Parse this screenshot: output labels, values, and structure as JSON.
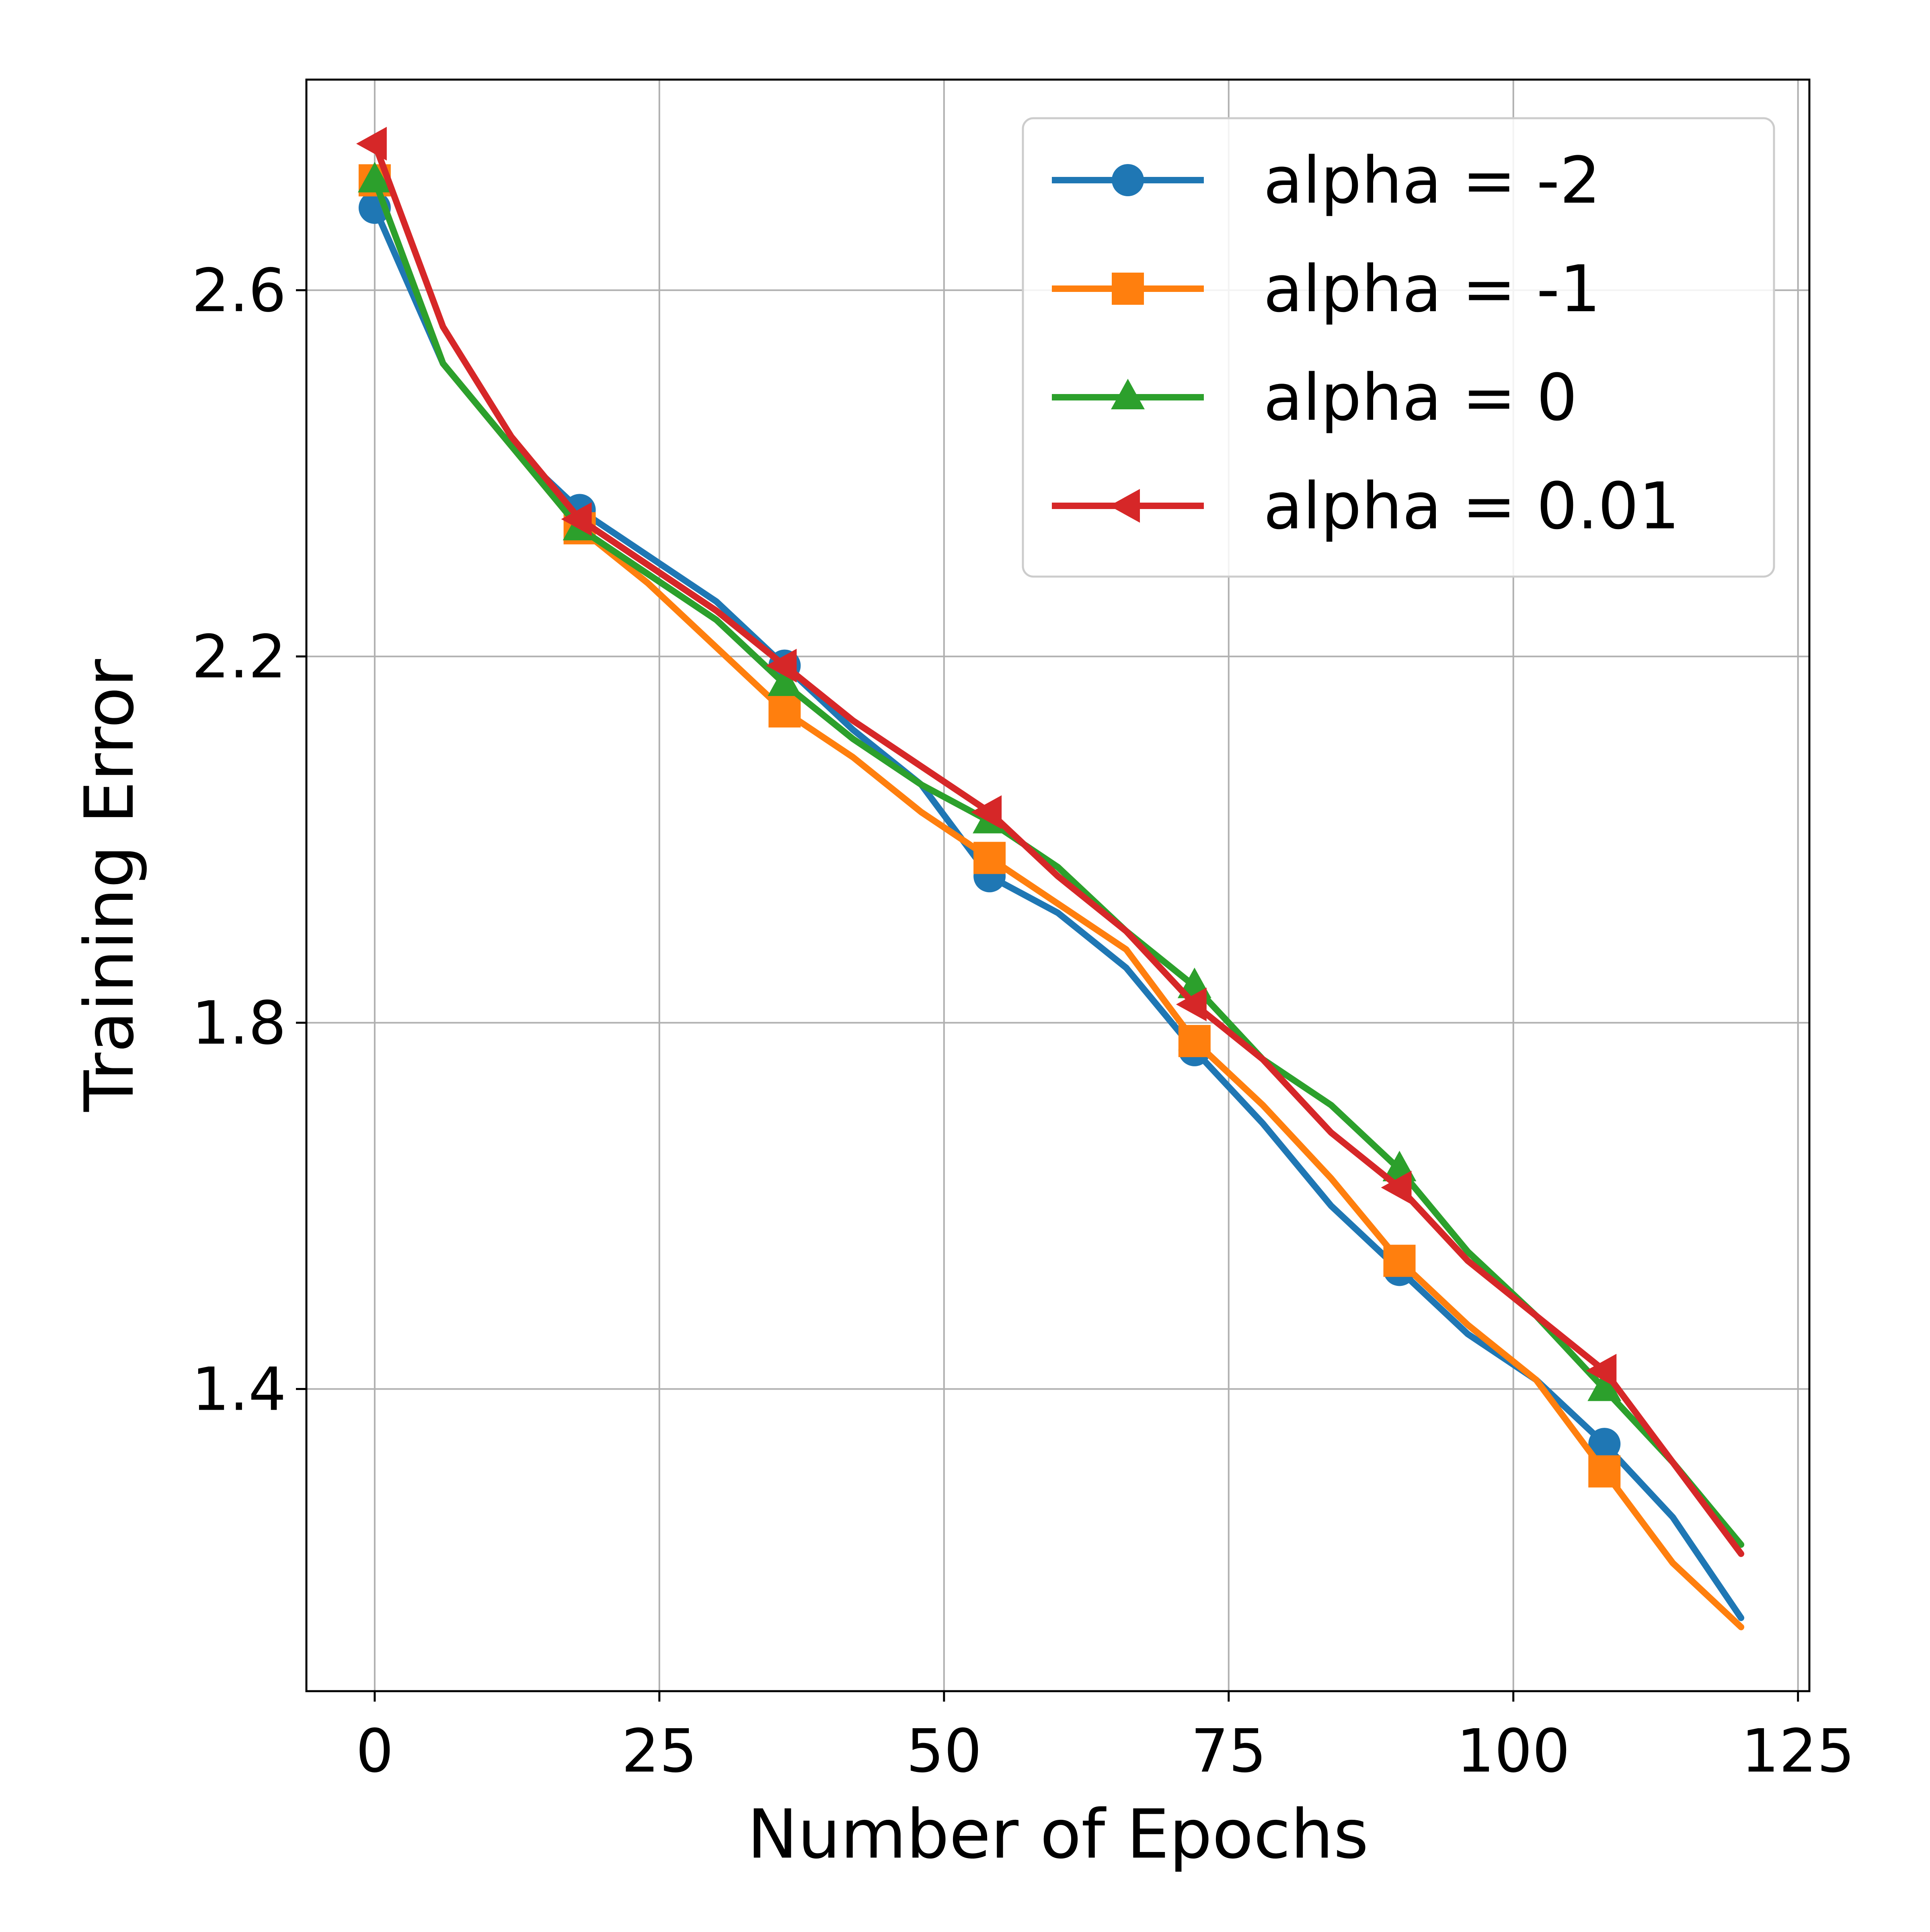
{
  "chart_data": {
    "type": "line",
    "title": "",
    "xlabel": "Number of Epochs",
    "ylabel": "Training Error",
    "xlim": [
      -6,
      126
    ],
    "ylim": [
      1.07,
      2.83
    ],
    "xticks": [
      0,
      25,
      50,
      75,
      100,
      125
    ],
    "xtick_labels": [
      "0",
      "25",
      "50",
      "75",
      "100",
      "125"
    ],
    "yticks": [
      1.4,
      1.8,
      2.2,
      2.6
    ],
    "ytick_labels": [
      "1.4",
      "1.8",
      "2.2",
      "2.6"
    ],
    "grid": true,
    "legend_position": "top-right",
    "marker_every": 18,
    "x": [
      0,
      6,
      12,
      18,
      24,
      30,
      36,
      42,
      48,
      54,
      60,
      66,
      72,
      78,
      84,
      90,
      96,
      102,
      108,
      114,
      120
    ],
    "series": [
      {
        "name": "alpha = -2",
        "color": "#1f77b4",
        "marker": "circle",
        "values": [
          2.69,
          2.52,
          2.43,
          2.36,
          2.31,
          2.26,
          2.19,
          2.12,
          2.06,
          1.96,
          1.92,
          1.86,
          1.77,
          1.69,
          1.6,
          1.53,
          1.46,
          1.41,
          1.34,
          1.26,
          1.15
        ]
      },
      {
        "name": "alpha = -1",
        "color": "#ff7f0e",
        "marker": "square",
        "values": [
          2.72,
          2.52,
          2.43,
          2.34,
          2.28,
          2.21,
          2.14,
          2.09,
          2.03,
          1.98,
          1.93,
          1.88,
          1.78,
          1.71,
          1.63,
          1.54,
          1.47,
          1.41,
          1.31,
          1.21,
          1.14
        ]
      },
      {
        "name": "alpha = 0",
        "color": "#2ca02c",
        "marker": "triangle-up",
        "values": [
          2.72,
          2.52,
          2.43,
          2.34,
          2.29,
          2.24,
          2.17,
          2.11,
          2.06,
          2.02,
          1.97,
          1.9,
          1.84,
          1.76,
          1.71,
          1.64,
          1.55,
          1.48,
          1.4,
          1.32,
          1.23
        ]
      },
      {
        "name": "alpha = 0.01",
        "color": "#d62728",
        "marker": "triangle-left",
        "values": [
          2.76,
          2.56,
          2.44,
          2.35,
          2.3,
          2.25,
          2.19,
          2.13,
          2.08,
          2.03,
          1.96,
          1.9,
          1.82,
          1.76,
          1.68,
          1.62,
          1.54,
          1.48,
          1.42,
          1.32,
          1.22
        ]
      }
    ]
  }
}
